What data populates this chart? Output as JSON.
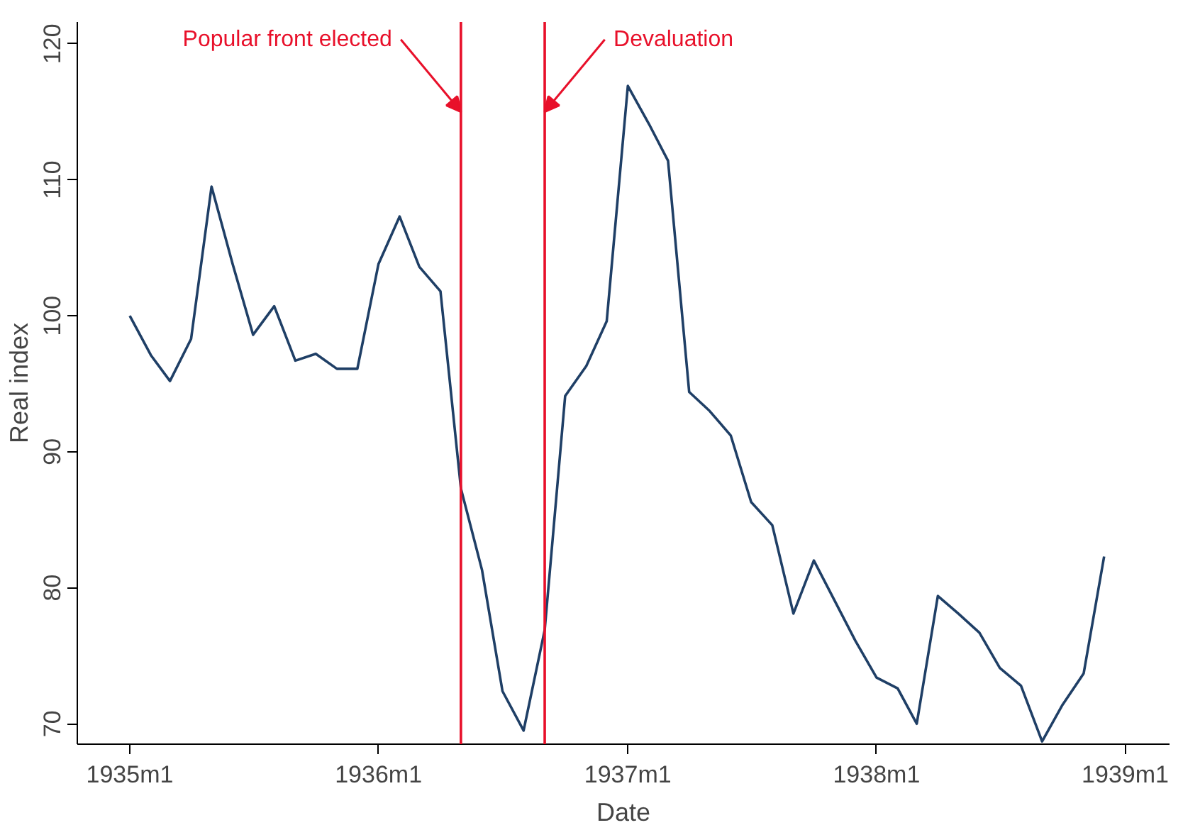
{
  "chart_data": {
    "type": "line",
    "xlabel": "Date",
    "ylabel": "Real index",
    "x": [
      "1935-01",
      "1935-02",
      "1935-03",
      "1935-04",
      "1935-05",
      "1935-06",
      "1935-07",
      "1935-08",
      "1935-09",
      "1935-10",
      "1935-11",
      "1935-12",
      "1936-01",
      "1936-02",
      "1936-03",
      "1936-04",
      "1936-05",
      "1936-06",
      "1936-07",
      "1936-08",
      "1936-09",
      "1936-10",
      "1936-11",
      "1936-12",
      "1937-01",
      "1937-02",
      "1937-03",
      "1937-04",
      "1937-05",
      "1937-06",
      "1937-07",
      "1937-08",
      "1937-09",
      "1937-10",
      "1937-11",
      "1937-12",
      "1938-01",
      "1938-02",
      "1938-03",
      "1938-04",
      "1938-05",
      "1938-06",
      "1938-07",
      "1938-08",
      "1938-09",
      "1938-10",
      "1938-11",
      "1938-12"
    ],
    "series": [
      {
        "color": "#1f3f66",
        "values": [
          100.0,
          97.1,
          95.2,
          98.3,
          109.5,
          103.8,
          98.6,
          100.7,
          96.7,
          97.2,
          96.1,
          96.1,
          103.8,
          107.3,
          103.6,
          101.8,
          87.3,
          81.3,
          72.4,
          69.5,
          76.9,
          94.1,
          96.3,
          99.6,
          116.9,
          114.1,
          111.4,
          94.4,
          93.0,
          91.2,
          86.3,
          84.6,
          78.1,
          82.0,
          79.0,
          76.1,
          73.4,
          72.6,
          70.0,
          79.4,
          78.1,
          76.7,
          74.1,
          72.8,
          68.7,
          71.4,
          73.7,
          82.3
        ]
      }
    ],
    "xlim": [
      "1934-10-16",
      "1939-03-07"
    ],
    "ylim": [
      68.5,
      121.6
    ],
    "xticks": [
      {
        "value": "1935-01",
        "label": "1935m1"
      },
      {
        "value": "1936-01",
        "label": "1936m1"
      },
      {
        "value": "1937-01",
        "label": "1937m1"
      },
      {
        "value": "1938-01",
        "label": "1938m1"
      },
      {
        "value": "1939-01",
        "label": "1939m1"
      }
    ],
    "yticks": [
      70,
      80,
      90,
      100,
      110,
      120
    ],
    "grid": false,
    "marker": "none",
    "line_style": "solid",
    "ref_lines": [
      {
        "axis": "x",
        "value": "1936-05",
        "color": "#e8102a"
      },
      {
        "axis": "x",
        "value": "1936-09",
        "color": "#e8102a"
      }
    ],
    "annotations": [
      {
        "text": "Popular front elected",
        "x": "1936-05",
        "y": 115
      },
      {
        "text": "Devaluation",
        "x": "1936-09",
        "y": 115
      }
    ]
  }
}
